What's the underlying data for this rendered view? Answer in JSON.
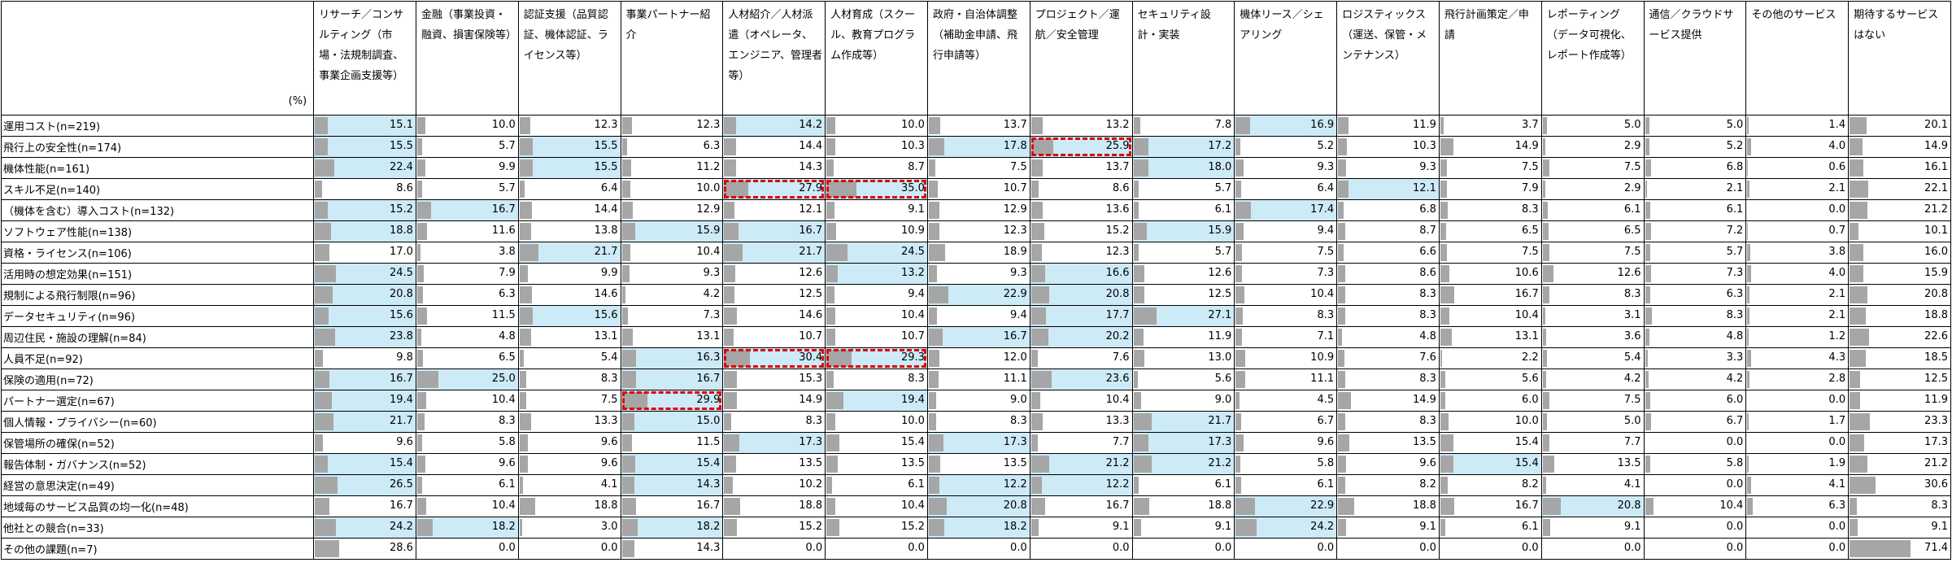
{
  "chart_data": {
    "type": "table",
    "corner_label": "(%)",
    "bar_scale_max": 72,
    "columns": [
      "リサーチ／コンサルティング（市場・法規制調査、事業企画支援等）",
      "金融（事業投資・融資、損害保険等）",
      "認証支援（品質認証、機体認証、ライセンス等）",
      "事業パートナー紹介",
      "人材紹介／人材派遣（オペレータ、エンジニア、管理者等）",
      "人材育成（スクール、教育プログラム作成等）",
      "政府・自治体調整（補助金申請、飛行申請等）",
      "プロジェクト／運航／安全管理",
      "セキュリティ設計・実装",
      "機体リース／シェアリング",
      "ロジスティックス（運送、保管・メンテナンス）",
      "飛行計画策定／申請",
      "レポーティング（データ可視化、レポート作成等）",
      "通信／クラウドサービス提供",
      "その他のサービス",
      "期待するサービスはない"
    ],
    "rows": [
      {
        "label": "運用コスト(n=219)",
        "values": [
          15.1,
          10.0,
          12.3,
          12.3,
          14.2,
          10.0,
          13.7,
          13.2,
          7.8,
          16.9,
          11.9,
          3.7,
          5.0,
          5.0,
          1.4,
          20.1
        ],
        "highlight": [
          0,
          4,
          9
        ],
        "boxed": []
      },
      {
        "label": "飛行上の安全性(n=174)",
        "values": [
          15.5,
          5.7,
          15.5,
          6.3,
          14.4,
          10.3,
          17.8,
          25.9,
          17.2,
          5.2,
          10.3,
          14.9,
          2.9,
          5.2,
          4.0,
          14.9
        ],
        "highlight": [
          0,
          2,
          6,
          7,
          8
        ],
        "boxed": [
          7
        ]
      },
      {
        "label": "機体性能(n=161)",
        "values": [
          22.4,
          9.9,
          15.5,
          11.2,
          14.3,
          8.7,
          7.5,
          13.7,
          18.0,
          9.3,
          9.3,
          7.5,
          7.5,
          6.8,
          0.6,
          16.1
        ],
        "highlight": [
          0,
          2,
          8
        ],
        "boxed": []
      },
      {
        "label": "スキル不足(n=140)",
        "values": [
          8.6,
          5.7,
          6.4,
          10.0,
          27.9,
          35.0,
          10.7,
          8.6,
          5.7,
          6.4,
          12.1,
          7.9,
          2.9,
          2.1,
          2.1,
          22.1
        ],
        "highlight": [
          4,
          5,
          10
        ],
        "boxed": [
          4,
          5
        ]
      },
      {
        "label": "（機体を含む）導入コスト(n=132)",
        "values": [
          15.2,
          16.7,
          14.4,
          12.9,
          12.1,
          9.1,
          12.9,
          13.6,
          6.1,
          17.4,
          6.8,
          8.3,
          6.1,
          6.1,
          0.0,
          21.2
        ],
        "highlight": [
          0,
          1,
          9
        ],
        "boxed": []
      },
      {
        "label": "ソフトウェア性能(n=138)",
        "values": [
          18.8,
          11.6,
          13.8,
          15.9,
          16.7,
          10.9,
          12.3,
          15.2,
          15.9,
          9.4,
          8.7,
          6.5,
          6.5,
          7.2,
          0.7,
          10.1
        ],
        "highlight": [
          0,
          3,
          4,
          8
        ],
        "boxed": []
      },
      {
        "label": "資格・ライセンス(n=106)",
        "values": [
          17.0,
          3.8,
          21.7,
          10.4,
          21.7,
          24.5,
          18.9,
          12.3,
          5.7,
          7.5,
          6.6,
          7.5,
          7.5,
          5.7,
          3.8,
          16.0
        ],
        "highlight": [
          2,
          4,
          5
        ],
        "boxed": []
      },
      {
        "label": "活用時の想定効果(n=151)",
        "values": [
          24.5,
          7.9,
          9.9,
          9.3,
          12.6,
          13.2,
          9.3,
          16.6,
          12.6,
          7.3,
          8.6,
          10.6,
          12.6,
          7.3,
          4.0,
          15.9
        ],
        "highlight": [
          0,
          5,
          7
        ],
        "boxed": []
      },
      {
        "label": "規制による飛行制限(n=96)",
        "values": [
          20.8,
          6.3,
          14.6,
          4.2,
          12.5,
          9.4,
          22.9,
          20.8,
          12.5,
          10.4,
          8.3,
          16.7,
          8.3,
          6.3,
          2.1,
          20.8
        ],
        "highlight": [
          0,
          6,
          7
        ],
        "boxed": []
      },
      {
        "label": "データセキュリティ(n=96)",
        "values": [
          15.6,
          11.5,
          15.6,
          7.3,
          14.6,
          10.4,
          9.4,
          17.7,
          27.1,
          8.3,
          8.3,
          10.4,
          3.1,
          8.3,
          2.1,
          18.8
        ],
        "highlight": [
          0,
          2,
          7,
          8
        ],
        "boxed": []
      },
      {
        "label": "周辺住民・施設の理解(n=84)",
        "values": [
          23.8,
          4.8,
          13.1,
          13.1,
          10.7,
          10.7,
          16.7,
          20.2,
          11.9,
          7.1,
          4.8,
          13.1,
          3.6,
          4.8,
          1.2,
          22.6
        ],
        "highlight": [
          0,
          6,
          7
        ],
        "boxed": []
      },
      {
        "label": "人員不足(n=92)",
        "values": [
          9.8,
          6.5,
          5.4,
          16.3,
          30.4,
          29.3,
          12.0,
          7.6,
          13.0,
          10.9,
          7.6,
          2.2,
          5.4,
          3.3,
          4.3,
          18.5
        ],
        "highlight": [
          3,
          4,
          5
        ],
        "boxed": [
          4,
          5
        ]
      },
      {
        "label": "保険の適用(n=72)",
        "values": [
          16.7,
          25.0,
          8.3,
          16.7,
          15.3,
          8.3,
          11.1,
          23.6,
          5.6,
          11.1,
          8.3,
          5.6,
          4.2,
          4.2,
          2.8,
          12.5
        ],
        "highlight": [
          0,
          1,
          3,
          7
        ],
        "boxed": []
      },
      {
        "label": "パートナー選定(n=67)",
        "values": [
          19.4,
          10.4,
          7.5,
          29.9,
          14.9,
          19.4,
          9.0,
          10.4,
          9.0,
          4.5,
          14.9,
          6.0,
          7.5,
          6.0,
          0.0,
          11.9
        ],
        "highlight": [
          0,
          3,
          5
        ],
        "boxed": [
          3
        ]
      },
      {
        "label": "個人情報・プライバシー(n=60)",
        "values": [
          21.7,
          8.3,
          13.3,
          15.0,
          8.3,
          10.0,
          8.3,
          13.3,
          21.7,
          6.7,
          8.3,
          10.0,
          5.0,
          6.7,
          1.7,
          23.3
        ],
        "highlight": [
          0,
          3,
          8
        ],
        "boxed": []
      },
      {
        "label": "保管場所の確保(n=52)",
        "values": [
          9.6,
          5.8,
          9.6,
          11.5,
          17.3,
          15.4,
          17.3,
          7.7,
          17.3,
          9.6,
          13.5,
          15.4,
          7.7,
          0.0,
          0.0,
          17.3
        ],
        "highlight": [
          4,
          6,
          8
        ],
        "boxed": []
      },
      {
        "label": "報告体制・ガバナンス(n=52)",
        "values": [
          15.4,
          9.6,
          9.6,
          15.4,
          13.5,
          13.5,
          13.5,
          21.2,
          21.2,
          5.8,
          9.6,
          15.4,
          13.5,
          5.8,
          1.9,
          21.2
        ],
        "highlight": [
          0,
          3,
          7,
          8,
          11
        ],
        "boxed": []
      },
      {
        "label": "経営の意思決定(n=49)",
        "values": [
          26.5,
          6.1,
          4.1,
          14.3,
          10.2,
          6.1,
          12.2,
          12.2,
          6.1,
          6.1,
          8.2,
          8.2,
          4.1,
          0.0,
          4.1,
          30.6
        ],
        "highlight": [
          0,
          3,
          6,
          7
        ],
        "boxed": []
      },
      {
        "label": "地域毎のサービス品質の均一化(n=48)",
        "values": [
          16.7,
          10.4,
          18.8,
          16.7,
          18.8,
          10.4,
          20.8,
          16.7,
          18.8,
          22.9,
          18.8,
          16.7,
          20.8,
          10.4,
          6.3,
          8.3
        ],
        "highlight": [
          6,
          9,
          12
        ],
        "boxed": []
      },
      {
        "label": "他社との競合(n=33)",
        "values": [
          24.2,
          18.2,
          3.0,
          18.2,
          15.2,
          15.2,
          18.2,
          9.1,
          9.1,
          24.2,
          9.1,
          6.1,
          9.1,
          0.0,
          0.0,
          9.1
        ],
        "highlight": [
          0,
          1,
          3,
          6,
          9
        ],
        "boxed": []
      },
      {
        "label": "その他の課題(n=7)",
        "values": [
          28.6,
          0.0,
          0.0,
          14.3,
          0.0,
          0.0,
          0.0,
          0.0,
          0.0,
          0.0,
          0.0,
          0.0,
          0.0,
          0.0,
          0.0,
          71.4
        ],
        "highlight": [],
        "boxed": []
      }
    ]
  }
}
